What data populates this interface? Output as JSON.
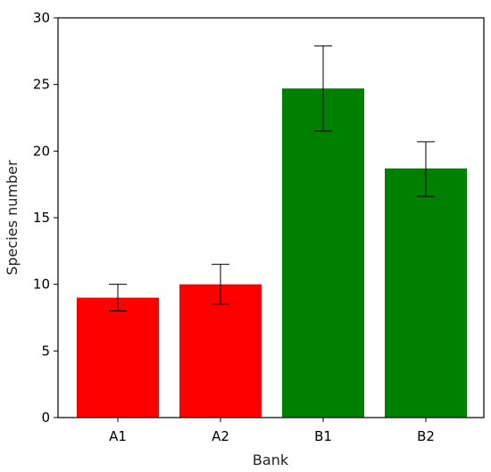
{
  "chart_data": {
    "type": "bar",
    "title": "",
    "xlabel": "Bank",
    "ylabel": "Species number",
    "ylim": [
      0,
      30
    ],
    "yticks": [
      0,
      5,
      10,
      15,
      20,
      25,
      30
    ],
    "categories": [
      "A1",
      "A2",
      "B1",
      "B2"
    ],
    "values": [
      9.0,
      10.0,
      24.7,
      18.7
    ],
    "error_lower": [
      8.0,
      8.5,
      21.5,
      16.6
    ],
    "error_upper": [
      10.0,
      11.5,
      27.9,
      20.7
    ],
    "bar_colors": [
      "#ff0000",
      "#ff0000",
      "#008000",
      "#008000"
    ],
    "grid": false,
    "legend": false
  }
}
